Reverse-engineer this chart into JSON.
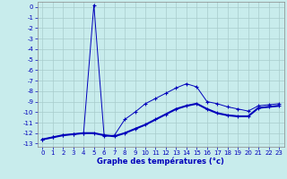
{
  "xlabel": "Graphe des températures (°c)",
  "background_color": "#c8ecec",
  "grid_color": "#a8cccc",
  "line_color": "#0000bb",
  "xlim_min": -0.5,
  "xlim_max": 23.5,
  "ylim_min": -13.3,
  "ylim_max": 0.5,
  "line1_x": [
    0,
    1,
    2,
    3,
    4,
    5,
    6,
    7,
    8,
    9,
    10,
    11,
    12,
    13,
    14,
    15,
    16,
    17,
    18,
    19,
    20,
    21,
    22,
    23
  ],
  "line1_y": [
    -12.6,
    -12.4,
    -12.2,
    -12.1,
    -12.0,
    0.2,
    -12.3,
    -12.2,
    -10.7,
    -10.0,
    -9.2,
    -8.7,
    -8.2,
    -7.7,
    -7.3,
    -7.6,
    -9.0,
    -9.2,
    -9.5,
    -9.7,
    -9.9,
    -9.4,
    -9.3,
    -9.2
  ],
  "line2_x": [
    0,
    1,
    2,
    3,
    4,
    5,
    6,
    7,
    8,
    9,
    10,
    11,
    12,
    13,
    14,
    15,
    16,
    17,
    18,
    19,
    20,
    21,
    22,
    23
  ],
  "line2_y": [
    -12.6,
    -12.4,
    -12.2,
    -12.1,
    -12.0,
    -12.0,
    -12.2,
    -12.3,
    -12.0,
    -11.6,
    -11.2,
    -10.7,
    -10.2,
    -9.7,
    -9.4,
    -9.2,
    -9.7,
    -10.1,
    -10.3,
    -10.4,
    -10.4,
    -9.6,
    -9.5,
    -9.4
  ],
  "xlabel_fontsize": 6,
  "tick_fontsize": 5
}
